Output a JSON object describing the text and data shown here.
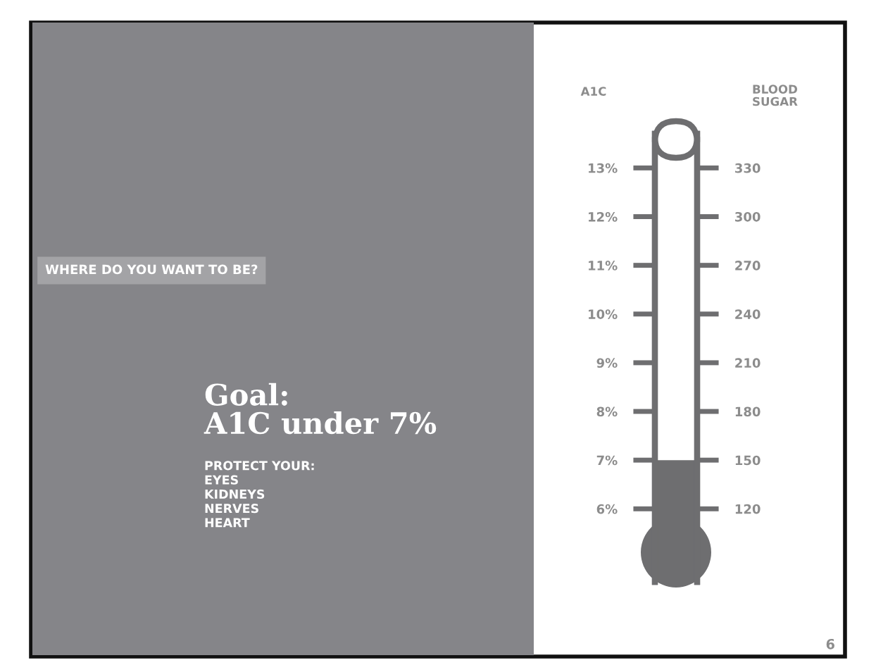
{
  "chart_data": {
    "type": "bar",
    "title": "WHERE DO YOU WANT TO BE?",
    "subtitle": "Goal:\nA1C under 7%",
    "annotations": [
      "PROTECT YOUR:\nEYES\nKIDNEYS\nNERVES\nHEART",
      "6"
    ],
    "categories": [
      null
    ],
    "values": [
      7
    ],
    "color": "#6e6e70",
    "ylabel": "A1C",
    "y2label": "BLOOD\nSUGAR",
    "ylim": [
      4.5,
      13.7
    ],
    "yticks": [
      {
        "value": 6,
        "label": "6%"
      },
      {
        "value": 7,
        "label": "7%"
      },
      {
        "value": 8,
        "label": "8%"
      },
      {
        "value": 9,
        "label": "9%"
      },
      {
        "value": 10,
        "label": "10%"
      },
      {
        "value": 11,
        "label": "11%"
      },
      {
        "value": 12,
        "label": "12%"
      },
      {
        "value": 13,
        "label": "13%"
      }
    ],
    "y2lim": [
      75,
      351
    ],
    "y2ticks": [
      120,
      150,
      180,
      210,
      240,
      270,
      300,
      330
    ],
    "tick_labels": "y",
    "grid": false
  }
}
